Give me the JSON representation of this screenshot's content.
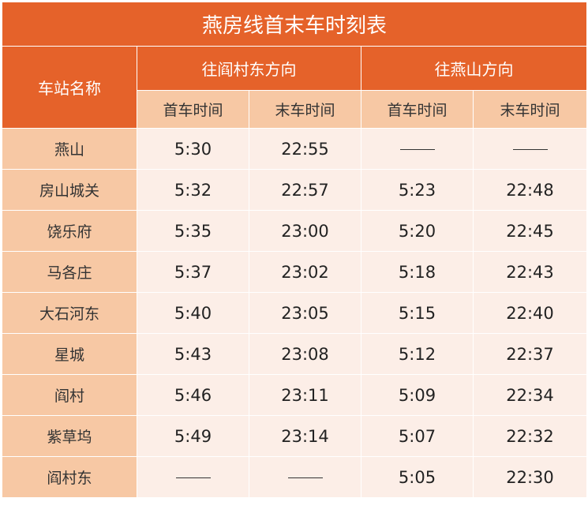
{
  "title": "燕房线首末车时刻表",
  "headers": {
    "station_col": "车站名称",
    "dir_yancundong": "往阎村东方向",
    "dir_yanshan": "往燕山方向",
    "first_train": "首车时间",
    "last_train": "末车时间"
  },
  "rows": [
    {
      "station": "燕山",
      "to_yancundong_first": "5:30",
      "to_yancundong_last": "22:55",
      "to_yanshan_first": "——",
      "to_yanshan_last": "——"
    },
    {
      "station": "房山城关",
      "to_yancundong_first": "5:32",
      "to_yancundong_last": "22:57",
      "to_yanshan_first": "5:23",
      "to_yanshan_last": "22:48"
    },
    {
      "station": "饶乐府",
      "to_yancundong_first": "5:35",
      "to_yancundong_last": "23:00",
      "to_yanshan_first": "5:20",
      "to_yanshan_last": "22:45"
    },
    {
      "station": "马各庄",
      "to_yancundong_first": "5:37",
      "to_yancundong_last": "23:02",
      "to_yanshan_first": "5:18",
      "to_yanshan_last": "22:43"
    },
    {
      "station": "大石河东",
      "to_yancundong_first": "5:40",
      "to_yancundong_last": "23:05",
      "to_yanshan_first": "5:15",
      "to_yanshan_last": "22:40"
    },
    {
      "station": "星城",
      "to_yancundong_first": "5:43",
      "to_yancundong_last": "23:08",
      "to_yanshan_first": "5:12",
      "to_yanshan_last": "22:37"
    },
    {
      "station": "阎村",
      "to_yancundong_first": "5:46",
      "to_yancundong_last": "23:11",
      "to_yanshan_first": "5:09",
      "to_yanshan_last": "22:34"
    },
    {
      "station": "紫草坞",
      "to_yancundong_first": "5:49",
      "to_yancundong_last": "23:14",
      "to_yanshan_first": "5:07",
      "to_yanshan_last": "22:32"
    },
    {
      "station": "阎村东",
      "to_yancundong_first": "——",
      "to_yancundong_last": "——",
      "to_yanshan_first": "5:05",
      "to_yanshan_last": "22:30"
    }
  ],
  "colors": {
    "header_orange": "#E5622A",
    "light_orange": "#F7C8A4",
    "pale_cell": "#FCEEE7"
  }
}
